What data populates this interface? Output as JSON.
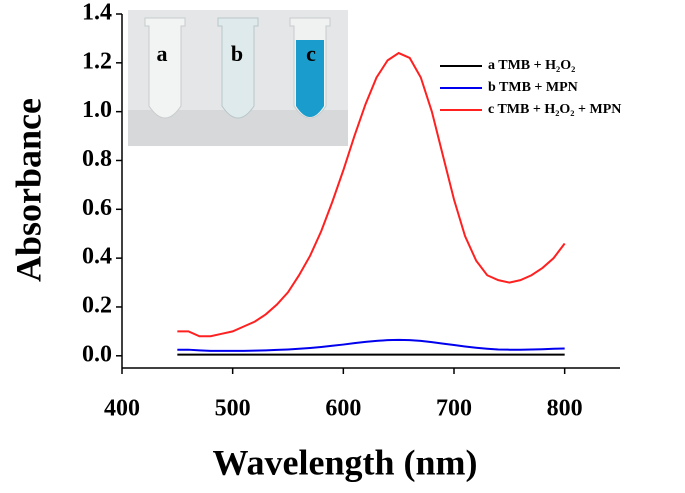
{
  "chart_data": {
    "type": "line",
    "x_label": "Wavelength (nm)",
    "y_label": "Absorbance",
    "x": [
      450,
      460,
      470,
      480,
      490,
      500,
      510,
      520,
      530,
      540,
      550,
      560,
      570,
      580,
      590,
      600,
      610,
      620,
      630,
      640,
      650,
      660,
      670,
      680,
      690,
      700,
      710,
      720,
      730,
      740,
      750,
      760,
      770,
      780,
      790,
      800
    ],
    "series": [
      {
        "name": "a TMB + H₂O₂",
        "color": "#000000",
        "values": [
          0.005,
          0.005,
          0.005,
          0.005,
          0.005,
          0.005,
          0.005,
          0.005,
          0.005,
          0.005,
          0.005,
          0.005,
          0.005,
          0.005,
          0.005,
          0.005,
          0.005,
          0.005,
          0.005,
          0.005,
          0.005,
          0.005,
          0.005,
          0.005,
          0.005,
          0.005,
          0.005,
          0.005,
          0.005,
          0.005,
          0.005,
          0.005,
          0.005,
          0.005,
          0.005,
          0.005
        ]
      },
      {
        "name": "b TMB + MPN",
        "color": "#0000ee",
        "values": [
          0.025,
          0.025,
          0.022,
          0.02,
          0.02,
          0.02,
          0.02,
          0.021,
          0.022,
          0.024,
          0.026,
          0.029,
          0.032,
          0.036,
          0.041,
          0.046,
          0.052,
          0.057,
          0.061,
          0.064,
          0.065,
          0.064,
          0.061,
          0.056,
          0.05,
          0.044,
          0.038,
          0.033,
          0.029,
          0.026,
          0.025,
          0.025,
          0.026,
          0.027,
          0.029,
          0.03
        ]
      },
      {
        "name": "c TMB + H₂O₂ + MPN",
        "color": "#ff2020",
        "values": [
          0.1,
          0.1,
          0.08,
          0.08,
          0.09,
          0.1,
          0.12,
          0.14,
          0.17,
          0.21,
          0.26,
          0.33,
          0.41,
          0.51,
          0.63,
          0.76,
          0.9,
          1.03,
          1.14,
          1.21,
          1.24,
          1.22,
          1.14,
          1.0,
          0.82,
          0.64,
          0.49,
          0.39,
          0.33,
          0.31,
          0.3,
          0.31,
          0.33,
          0.36,
          0.4,
          0.46
        ]
      }
    ],
    "xlim": [
      400,
      850
    ],
    "ylim": [
      -0.05,
      1.4
    ],
    "xticks": [
      400,
      500,
      600,
      700,
      800
    ],
    "yticks": [
      {
        "value": 0,
        "label": "0.0"
      },
      {
        "value": 0.2,
        "label": "0.2"
      },
      {
        "value": 0.4,
        "label": "0.4"
      },
      {
        "value": 0.6,
        "label": "0.6"
      },
      {
        "value": 0.8,
        "label": "0.8"
      },
      {
        "value": 1.0,
        "label": "1.0"
      },
      {
        "value": 1.2,
        "label": "1.2"
      },
      {
        "value": 1.4,
        "label": "1.4"
      }
    ],
    "legend": "top-right",
    "inset_labels": [
      "a",
      "b",
      "c"
    ]
  }
}
